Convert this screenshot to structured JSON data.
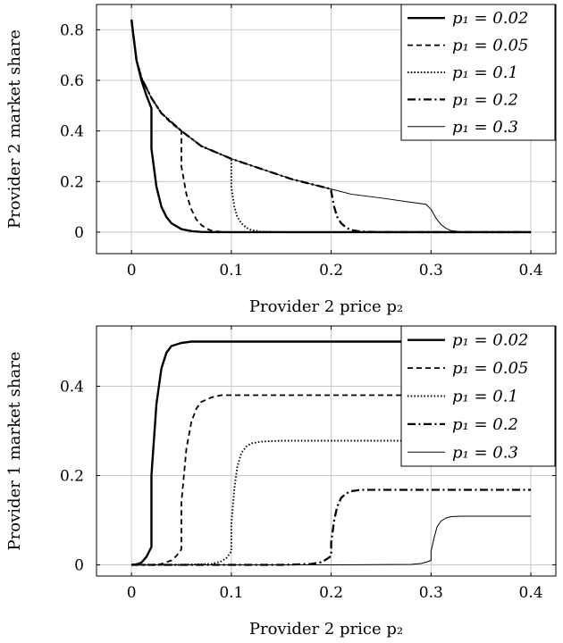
{
  "chart_data": [
    {
      "type": "line",
      "xlabel": "Provider 2 price p₂",
      "ylabel": "Provider 2 market share",
      "xlim": [
        -0.035,
        0.425
      ],
      "ylim": [
        -0.085,
        0.9
      ],
      "xticks": [
        0,
        0.1,
        0.2,
        0.3,
        0.4
      ],
      "xtick_labels": [
        "0",
        "0.1",
        "0.2",
        "0.3",
        "0.4"
      ],
      "yticks": [
        0,
        0.2,
        0.4,
        0.6,
        0.8
      ],
      "ytick_labels": [
        "0",
        "0.2",
        "0.4",
        "0.6",
        "0.8"
      ],
      "grid": true,
      "legend_position": "top-right",
      "series": [
        {
          "name": "p₁ = 0.02",
          "style": "solid-thick",
          "x": [
            0,
            0.005,
            0.01,
            0.015,
            0.02,
            0.02,
            0.025,
            0.03,
            0.035,
            0.04,
            0.05,
            0.06,
            0.07,
            0.08,
            0.1,
            0.2,
            0.3,
            0.4
          ],
          "y": [
            0.84,
            0.68,
            0.6,
            0.54,
            0.49,
            0.33,
            0.18,
            0.1,
            0.06,
            0.035,
            0.012,
            0.004,
            0.001,
            0,
            0,
            0,
            0,
            0
          ]
        },
        {
          "name": "p₁ = 0.05",
          "style": "dashed",
          "x": [
            0,
            0.005,
            0.01,
            0.02,
            0.03,
            0.04,
            0.05,
            0.05,
            0.055,
            0.06,
            0.065,
            0.07,
            0.075,
            0.08,
            0.09,
            0.1,
            0.2,
            0.3,
            0.4
          ],
          "y": [
            0.84,
            0.68,
            0.61,
            0.53,
            0.47,
            0.43,
            0.4,
            0.26,
            0.15,
            0.09,
            0.05,
            0.028,
            0.014,
            0.006,
            0.001,
            0,
            0,
            0,
            0
          ]
        },
        {
          "name": "p₁ = 0.1",
          "style": "dotted",
          "x": [
            0,
            0.005,
            0.01,
            0.02,
            0.03,
            0.05,
            0.07,
            0.1,
            0.1,
            0.103,
            0.106,
            0.11,
            0.115,
            0.12,
            0.13,
            0.15,
            0.2,
            0.3,
            0.4
          ],
          "y": [
            0.84,
            0.68,
            0.61,
            0.53,
            0.47,
            0.4,
            0.34,
            0.29,
            0.18,
            0.1,
            0.06,
            0.035,
            0.018,
            0.008,
            0.002,
            0,
            0,
            0,
            0
          ]
        },
        {
          "name": "p₁ = 0.2",
          "style": "dashdot",
          "x": [
            0,
            0.005,
            0.01,
            0.02,
            0.03,
            0.05,
            0.07,
            0.1,
            0.13,
            0.16,
            0.2,
            0.2,
            0.203,
            0.206,
            0.21,
            0.215,
            0.22,
            0.23,
            0.25,
            0.3,
            0.4
          ],
          "y": [
            0.84,
            0.68,
            0.61,
            0.53,
            0.47,
            0.4,
            0.34,
            0.29,
            0.25,
            0.21,
            0.17,
            0.16,
            0.1,
            0.06,
            0.035,
            0.018,
            0.008,
            0.002,
            0,
            0,
            0
          ]
        },
        {
          "name": "p₁ = 0.3",
          "style": "solid-thin",
          "x": [
            0,
            0.005,
            0.01,
            0.02,
            0.03,
            0.05,
            0.07,
            0.1,
            0.13,
            0.16,
            0.2,
            0.22,
            0.25,
            0.28,
            0.295,
            0.3,
            0.305,
            0.31,
            0.315,
            0.32,
            0.33,
            0.35,
            0.4
          ],
          "y": [
            0.84,
            0.68,
            0.61,
            0.53,
            0.47,
            0.4,
            0.34,
            0.29,
            0.25,
            0.21,
            0.17,
            0.15,
            0.135,
            0.118,
            0.11,
            0.09,
            0.055,
            0.03,
            0.015,
            0.006,
            0.001,
            0,
            0
          ]
        }
      ]
    },
    {
      "type": "line",
      "xlabel": "Provider 2 price p₂",
      "ylabel": "Provider 1 market share",
      "xlim": [
        -0.035,
        0.425
      ],
      "ylim": [
        -0.025,
        0.535
      ],
      "xticks": [
        0,
        0.1,
        0.2,
        0.3,
        0.4
      ],
      "xtick_labels": [
        "0",
        "0.1",
        "0.2",
        "0.3",
        "0.4"
      ],
      "yticks": [
        0,
        0.2,
        0.4
      ],
      "ytick_labels": [
        "0",
        "0.2",
        "0.4"
      ],
      "grid": true,
      "legend_position": "top-right",
      "series": [
        {
          "name": "p₁ = 0.02",
          "style": "solid-thick",
          "x": [
            0,
            0.005,
            0.01,
            0.015,
            0.02,
            0.02,
            0.025,
            0.03,
            0.035,
            0.04,
            0.05,
            0.06,
            0.07,
            0.1,
            0.2,
            0.3,
            0.4
          ],
          "y": [
            0,
            0.001,
            0.005,
            0.018,
            0.04,
            0.2,
            0.36,
            0.44,
            0.475,
            0.49,
            0.497,
            0.5,
            0.5,
            0.5,
            0.5,
            0.5,
            0.5
          ]
        },
        {
          "name": "p₁ = 0.05",
          "style": "dashed",
          "x": [
            0,
            0.02,
            0.03,
            0.04,
            0.045,
            0.05,
            0.05,
            0.055,
            0.06,
            0.065,
            0.07,
            0.08,
            0.09,
            0.1,
            0.2,
            0.3,
            0.4
          ],
          "y": [
            0,
            0,
            0.002,
            0.01,
            0.02,
            0.035,
            0.14,
            0.26,
            0.32,
            0.35,
            0.365,
            0.375,
            0.38,
            0.38,
            0.38,
            0.38,
            0.38
          ]
        },
        {
          "name": "p₁ = 0.1",
          "style": "dotted",
          "x": [
            0,
            0.05,
            0.08,
            0.09,
            0.095,
            0.1,
            0.1,
            0.103,
            0.106,
            0.11,
            0.115,
            0.12,
            0.13,
            0.15,
            0.2,
            0.3,
            0.4
          ],
          "y": [
            0,
            0,
            0.002,
            0.008,
            0.015,
            0.03,
            0.09,
            0.17,
            0.22,
            0.25,
            0.265,
            0.272,
            0.276,
            0.278,
            0.278,
            0.278,
            0.278
          ]
        },
        {
          "name": "p₁ = 0.2",
          "style": "dashdot",
          "x": [
            0,
            0.1,
            0.15,
            0.18,
            0.19,
            0.195,
            0.2,
            0.2,
            0.203,
            0.206,
            0.21,
            0.215,
            0.22,
            0.23,
            0.25,
            0.3,
            0.4
          ],
          "y": [
            0,
            0,
            0,
            0.002,
            0.006,
            0.012,
            0.02,
            0.05,
            0.1,
            0.13,
            0.15,
            0.16,
            0.165,
            0.168,
            0.168,
            0.168,
            0.168
          ]
        },
        {
          "name": "p₁ = 0.3",
          "style": "solid-thin",
          "x": [
            0,
            0.1,
            0.2,
            0.28,
            0.29,
            0.295,
            0.3,
            0.3,
            0.303,
            0.306,
            0.31,
            0.315,
            0.32,
            0.33,
            0.35,
            0.4
          ],
          "y": [
            0,
            0,
            0,
            0.001,
            0.003,
            0.006,
            0.01,
            0.03,
            0.06,
            0.085,
            0.098,
            0.105,
            0.108,
            0.109,
            0.109,
            0.109
          ]
        }
      ]
    }
  ]
}
